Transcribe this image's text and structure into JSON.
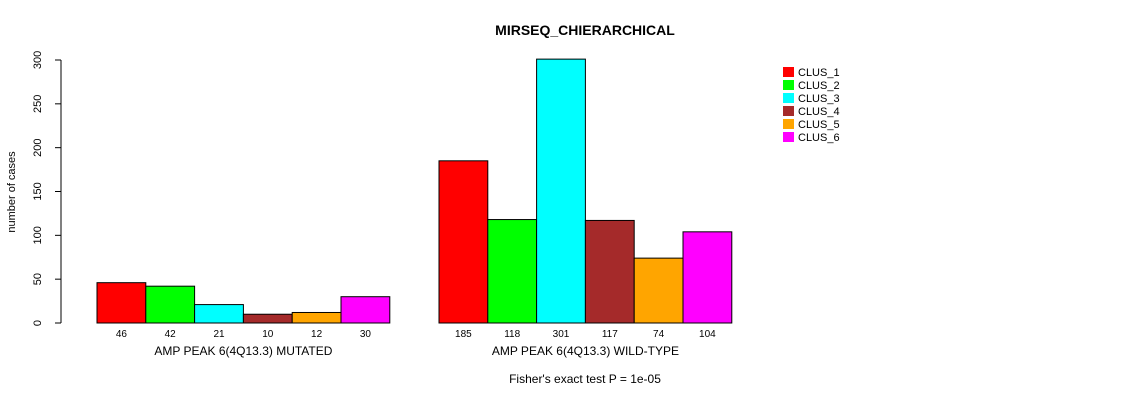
{
  "chart_data": {
    "type": "bar",
    "title": "MIRSEQ_CHIERARCHICAL",
    "ylabel": "number of cases",
    "ylim": [
      0,
      300
    ],
    "yticks": [
      0,
      50,
      100,
      150,
      200,
      250,
      300
    ],
    "groups": [
      {
        "label": "AMP PEAK  6(4Q13.3) MUTATED",
        "values": [
          46,
          42,
          21,
          10,
          12,
          30
        ]
      },
      {
        "label": "AMP PEAK  6(4Q13.3) WILD-TYPE",
        "values": [
          185,
          118,
          301,
          117,
          74,
          104
        ]
      }
    ],
    "series": [
      {
        "name": "CLUS_1",
        "color": "#ff0000"
      },
      {
        "name": "CLUS_2",
        "color": "#00ff00"
      },
      {
        "name": "CLUS_3",
        "color": "#00ffff"
      },
      {
        "name": "CLUS_4",
        "color": "#a52a2a"
      },
      {
        "name": "CLUS_5",
        "color": "#ffa500"
      },
      {
        "name": "CLUS_6",
        "color": "#ff00ff"
      }
    ],
    "legend_position": "top-right",
    "annotation": "Fisher's exact test P = 1e-05"
  }
}
